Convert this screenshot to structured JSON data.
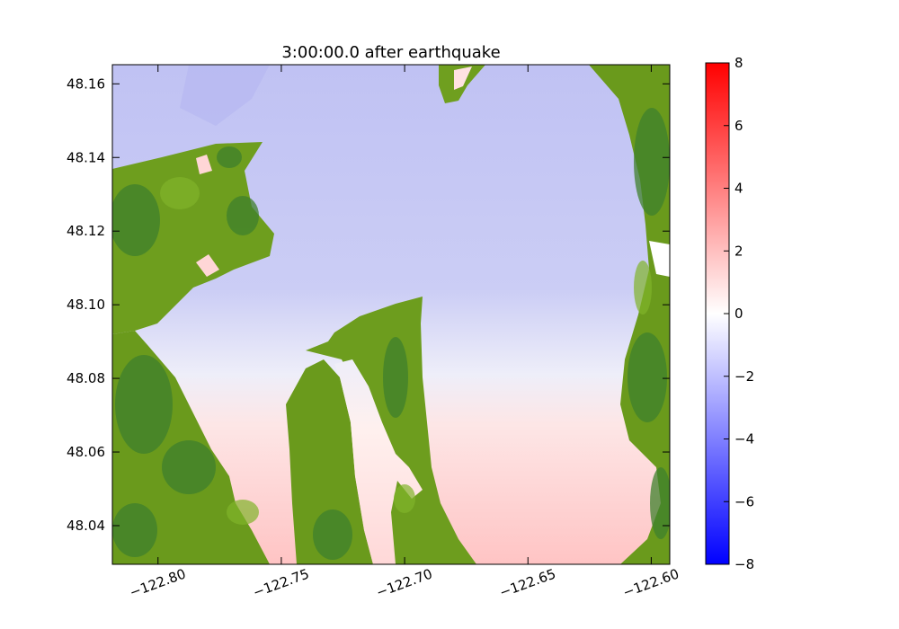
{
  "chart_data": {
    "type": "heatmap",
    "title": "3:00:00.0 after earthquake",
    "xlabel": "",
    "ylabel": "",
    "xlim": [
      -122.8185,
      -122.5925
    ],
    "ylim": [
      48.0295,
      48.1652
    ],
    "x_ticks": [
      -122.8,
      -122.75,
      -122.7,
      -122.65,
      -122.6
    ],
    "x_tick_labels": [
      "−122.80",
      "−122.75",
      "−122.70",
      "−122.65",
      "−122.60"
    ],
    "y_ticks": [
      48.04,
      48.06,
      48.08,
      48.1,
      48.12,
      48.14,
      48.16
    ],
    "y_tick_labels": [
      "48.04",
      "48.06",
      "48.08",
      "48.10",
      "48.12",
      "48.14",
      "48.16"
    ],
    "colorbar": {
      "range": [
        -8,
        8
      ],
      "ticks": [
        8,
        6,
        4,
        2,
        0,
        -2,
        -4,
        -6,
        -8
      ],
      "tick_labels": [
        "8",
        "6",
        "4",
        "2",
        "0",
        "−2",
        "−4",
        "−6",
        "−8"
      ],
      "colormap": [
        "#0000ff",
        "#ffffff",
        "#ff0000"
      ]
    },
    "colors": {
      "land": "#6a9a1c",
      "land_dark": "#3d7f2c",
      "land_light": "#7fb32a",
      "water_neg": "#c2c4f4",
      "water_pos": "#ffd2d2"
    },
    "grid": false
  }
}
